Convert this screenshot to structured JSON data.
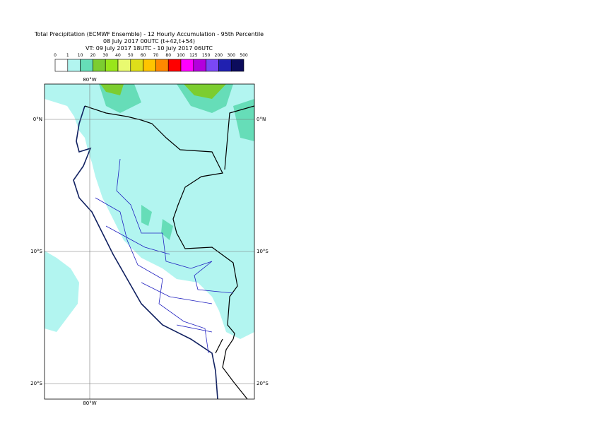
{
  "header": {
    "title": "Total Precipitation (ECMWF Ensemble) - 12 Hourly Accumulation - 95th Percentile",
    "base_time": "08 July 2017 00UTC (t+42,t+54)",
    "valid_time": "VT: 09 July 2017 18UTC - 10 July 2017 06UTC"
  },
  "legend": {
    "labels": [
      "0",
      "1",
      "10",
      "20",
      "30",
      "40",
      "50",
      "60",
      "70",
      "80",
      "100",
      "125",
      "150",
      "200",
      "300",
      "500"
    ],
    "colors": [
      "#ffffff",
      "#b2f5f0",
      "#66ddb8",
      "#7ccd30",
      "#99e61a",
      "#e9fa70",
      "#dede1a",
      "#ffc400",
      "#ff8800",
      "#ff0000",
      "#ff00ff",
      "#b300dd",
      "#7a48f5",
      "#2020b0",
      "#0c0c5c"
    ]
  },
  "map": {
    "lon_label_top": "80°W",
    "lon_label_bottom": "80°W",
    "lat_labels": [
      "0°N",
      "10°S",
      "20°S"
    ]
  }
}
